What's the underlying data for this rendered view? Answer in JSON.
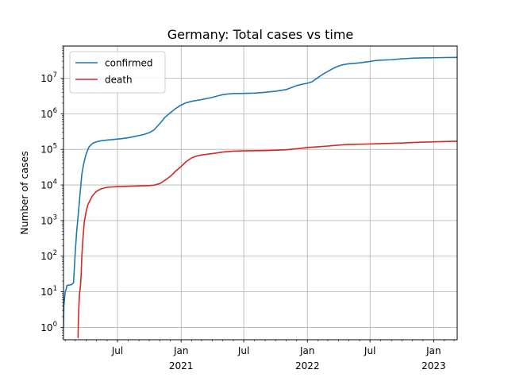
{
  "chart_data": {
    "type": "line",
    "title": "Germany: Total cases vs time",
    "xlabel": "",
    "ylabel": "Number of cases",
    "yscale": "log",
    "ylim": [
      0.45,
      80000000
    ],
    "xlim": [
      "2020-01-27",
      "2023-03-10"
    ],
    "grid": true,
    "legend_position": "top-left",
    "x_ticks": [
      {
        "date": "2020-07-01",
        "label": "Jul"
      },
      {
        "date": "2021-01-01",
        "label": "Jan",
        "year": "2021"
      },
      {
        "date": "2021-07-01",
        "label": "Jul"
      },
      {
        "date": "2022-01-01",
        "label": "Jan",
        "year": "2022"
      },
      {
        "date": "2022-07-01",
        "label": "Jul"
      },
      {
        "date": "2023-01-01",
        "label": "Jan",
        "year": "2023"
      }
    ],
    "y_ticks": [
      {
        "value": 1,
        "label": "10",
        "exp": "0"
      },
      {
        "value": 10,
        "label": "10",
        "exp": "1"
      },
      {
        "value": 100,
        "label": "10",
        "exp": "2"
      },
      {
        "value": 1000,
        "label": "10",
        "exp": "3"
      },
      {
        "value": 10000,
        "label": "10",
        "exp": "4"
      },
      {
        "value": 100000,
        "label": "10",
        "exp": "5"
      },
      {
        "value": 1000000,
        "label": "10",
        "exp": "6"
      },
      {
        "value": 10000000,
        "label": "10",
        "exp": "7"
      }
    ],
    "series": [
      {
        "name": "confirmed",
        "color": "#1f77b4",
        "points": [
          [
            "2020-01-27",
            1
          ],
          [
            "2020-01-28",
            4
          ],
          [
            "2020-01-31",
            8
          ],
          [
            "2020-02-01",
            10
          ],
          [
            "2020-02-04",
            12
          ],
          [
            "2020-02-06",
            15
          ],
          [
            "2020-02-20",
            16
          ],
          [
            "2020-02-25",
            18
          ],
          [
            "2020-02-27",
            40
          ],
          [
            "2020-03-01",
            130
          ],
          [
            "2020-03-05",
            480
          ],
          [
            "2020-03-10",
            1600
          ],
          [
            "2020-03-15",
            5800
          ],
          [
            "2020-03-20",
            20000
          ],
          [
            "2020-03-25",
            38000
          ],
          [
            "2020-04-01",
            72000
          ],
          [
            "2020-04-10",
            118000
          ],
          [
            "2020-04-20",
            148000
          ],
          [
            "2020-05-01",
            163000
          ],
          [
            "2020-05-15",
            175000
          ],
          [
            "2020-06-01",
            183000
          ],
          [
            "2020-06-15",
            188000
          ],
          [
            "2020-07-01",
            195000
          ],
          [
            "2020-07-15",
            201000
          ],
          [
            "2020-08-01",
            212000
          ],
          [
            "2020-08-15",
            226000
          ],
          [
            "2020-09-01",
            245000
          ],
          [
            "2020-09-15",
            263000
          ],
          [
            "2020-10-01",
            295000
          ],
          [
            "2020-10-15",
            355000
          ],
          [
            "2020-11-01",
            540000
          ],
          [
            "2020-11-15",
            790000
          ],
          [
            "2020-12-01",
            1070000
          ],
          [
            "2020-12-15",
            1380000
          ],
          [
            "2021-01-01",
            1760000
          ],
          [
            "2021-01-15",
            2040000
          ],
          [
            "2021-02-01",
            2250000
          ],
          [
            "2021-03-01",
            2500000
          ],
          [
            "2021-04-01",
            2880000
          ],
          [
            "2021-04-15",
            3150000
          ],
          [
            "2021-05-01",
            3440000
          ],
          [
            "2021-05-15",
            3600000
          ],
          [
            "2021-06-01",
            3700000
          ],
          [
            "2021-07-01",
            3740000
          ],
          [
            "2021-08-01",
            3800000
          ],
          [
            "2021-09-01",
            4000000
          ],
          [
            "2021-10-01",
            4300000
          ],
          [
            "2021-11-01",
            4800000
          ],
          [
            "2021-11-15",
            5400000
          ],
          [
            "2021-12-01",
            6200000
          ],
          [
            "2021-12-15",
            6700000
          ],
          [
            "2022-01-01",
            7200000
          ],
          [
            "2022-01-15",
            8000000
          ],
          [
            "2022-02-01",
            10500000
          ],
          [
            "2022-02-15",
            13000000
          ],
          [
            "2022-03-01",
            15500000
          ],
          [
            "2022-03-15",
            18500000
          ],
          [
            "2022-04-01",
            22000000
          ],
          [
            "2022-04-15",
            24000000
          ],
          [
            "2022-05-01",
            25500000
          ],
          [
            "2022-06-01",
            27000000
          ],
          [
            "2022-07-01",
            29500000
          ],
          [
            "2022-07-15",
            31000000
          ],
          [
            "2022-08-01",
            32000000
          ],
          [
            "2022-09-01",
            33000000
          ],
          [
            "2022-10-01",
            35000000
          ],
          [
            "2022-11-01",
            36500000
          ],
          [
            "2022-12-01",
            37200000
          ],
          [
            "2023-01-01",
            37500000
          ],
          [
            "2023-02-01",
            38000000
          ],
          [
            "2023-03-10",
            38400000
          ]
        ]
      },
      {
        "name": "death",
        "color": "#d62728",
        "points": [
          [
            "2020-03-09",
            0.5
          ],
          [
            "2020-03-10",
            1.5
          ],
          [
            "2020-03-11",
            3
          ],
          [
            "2020-03-13",
            8
          ],
          [
            "2020-03-15",
            12
          ],
          [
            "2020-03-16",
            14
          ],
          [
            "2020-03-18",
            30
          ],
          [
            "2020-03-20",
            100
          ],
          [
            "2020-03-23",
            300
          ],
          [
            "2020-03-27",
            900
          ],
          [
            "2020-04-01",
            1700
          ],
          [
            "2020-04-06",
            2700
          ],
          [
            "2020-04-12",
            3600
          ],
          [
            "2020-04-20",
            5000
          ],
          [
            "2020-05-01",
            6600
          ],
          [
            "2020-05-15",
            7800
          ],
          [
            "2020-06-01",
            8600
          ],
          [
            "2020-07-01",
            9000
          ],
          [
            "2020-08-01",
            9200
          ],
          [
            "2020-09-01",
            9400
          ],
          [
            "2020-10-01",
            9600
          ],
          [
            "2020-10-15",
            9900
          ],
          [
            "2020-11-01",
            11000
          ],
          [
            "2020-11-15",
            13500
          ],
          [
            "2020-12-01",
            17500
          ],
          [
            "2020-12-15",
            24000
          ],
          [
            "2021-01-01",
            33000
          ],
          [
            "2021-01-15",
            45000
          ],
          [
            "2021-02-01",
            58000
          ],
          [
            "2021-02-15",
            65000
          ],
          [
            "2021-03-01",
            70000
          ],
          [
            "2021-04-01",
            76000
          ],
          [
            "2021-05-01",
            84000
          ],
          [
            "2021-06-01",
            89000
          ],
          [
            "2021-07-01",
            91000
          ],
          [
            "2021-09-01",
            92500
          ],
          [
            "2021-10-01",
            94500
          ],
          [
            "2021-11-01",
            97500
          ],
          [
            "2021-12-01",
            104000
          ],
          [
            "2022-01-01",
            113000
          ],
          [
            "2022-02-01",
            118000
          ],
          [
            "2022-03-01",
            124000
          ],
          [
            "2022-04-01",
            132000
          ],
          [
            "2022-05-01",
            138000
          ],
          [
            "2022-06-01",
            140000
          ],
          [
            "2022-07-01",
            142000
          ],
          [
            "2022-08-01",
            145000
          ],
          [
            "2022-09-01",
            148000
          ],
          [
            "2022-10-01",
            151000
          ],
          [
            "2022-11-01",
            156000
          ],
          [
            "2022-12-01",
            160000
          ],
          [
            "2023-01-01",
            163000
          ],
          [
            "2023-02-01",
            166000
          ],
          [
            "2023-03-10",
            169000
          ]
        ]
      }
    ]
  }
}
